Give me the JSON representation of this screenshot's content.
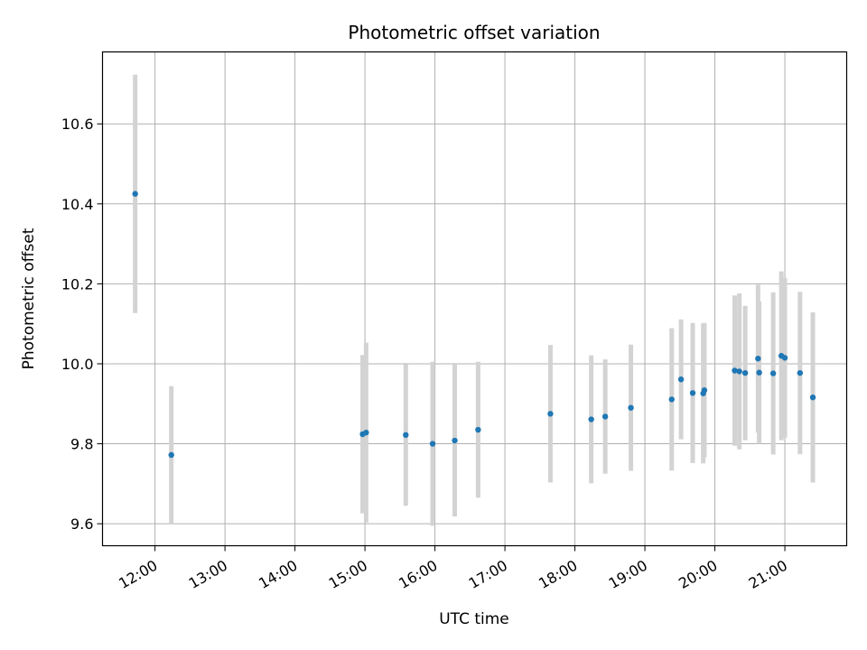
{
  "chart_data": {
    "type": "scatter",
    "title": "Photometric offset variation",
    "xlabel": "UTC time",
    "ylabel": "Photometric offset",
    "grid": true,
    "xlim": [
      "11:15",
      "21:53"
    ],
    "ylim": [
      9.545,
      10.78
    ],
    "x_ticks": [
      "12:00",
      "13:00",
      "14:00",
      "15:00",
      "16:00",
      "17:00",
      "18:00",
      "19:00",
      "20:00",
      "21:00"
    ],
    "y_ticks": [
      9.6,
      9.8,
      10.0,
      10.2,
      10.4,
      10.6
    ],
    "y_tick_labels": [
      "9.6",
      "9.8",
      "10.0",
      "10.2",
      "10.4",
      "10.6"
    ],
    "colors": {
      "point": "#1f77b4",
      "errorbar": "#d3d3d3",
      "grid": "#b0b0b0"
    },
    "points": [
      {
        "x": "11:43",
        "y": 10.425,
        "err": 0.298
      },
      {
        "x": "12:14",
        "y": 9.772,
        "err": 0.172
      },
      {
        "x": "14:58",
        "y": 9.824,
        "err": 0.198
      },
      {
        "x": "15:01",
        "y": 9.828,
        "err": 0.225
      },
      {
        "x": "15:35",
        "y": 9.822,
        "err": 0.177
      },
      {
        "x": "15:58",
        "y": 9.8,
        "err": 0.205
      },
      {
        "x": "16:17",
        "y": 9.808,
        "err": 0.19
      },
      {
        "x": "16:37",
        "y": 9.835,
        "err": 0.17
      },
      {
        "x": "17:39",
        "y": 9.875,
        "err": 0.172
      },
      {
        "x": "18:14",
        "y": 9.861,
        "err": 0.16
      },
      {
        "x": "18:26",
        "y": 9.868,
        "err": 0.143
      },
      {
        "x": "18:48",
        "y": 9.89,
        "err": 0.158
      },
      {
        "x": "19:23",
        "y": 9.911,
        "err": 0.178
      },
      {
        "x": "19:31",
        "y": 9.961,
        "err": 0.15
      },
      {
        "x": "19:41",
        "y": 9.927,
        "err": 0.175
      },
      {
        "x": "19:50",
        "y": 9.926,
        "err": 0.175
      },
      {
        "x": "19:51",
        "y": 9.934,
        "err": 0.168
      },
      {
        "x": "20:17",
        "y": 9.983,
        "err": 0.188
      },
      {
        "x": "20:21",
        "y": 9.981,
        "err": 0.195
      },
      {
        "x": "20:26",
        "y": 9.977,
        "err": 0.168
      },
      {
        "x": "20:37",
        "y": 10.013,
        "err": 0.185
      },
      {
        "x": "20:38",
        "y": 9.978,
        "err": 0.178
      },
      {
        "x": "20:50",
        "y": 9.976,
        "err": 0.203
      },
      {
        "x": "20:57",
        "y": 10.02,
        "err": 0.211
      },
      {
        "x": "21:00",
        "y": 10.015,
        "err": 0.2
      },
      {
        "x": "21:13",
        "y": 9.977,
        "err": 0.203
      },
      {
        "x": "21:24",
        "y": 9.916,
        "err": 0.213
      }
    ]
  }
}
